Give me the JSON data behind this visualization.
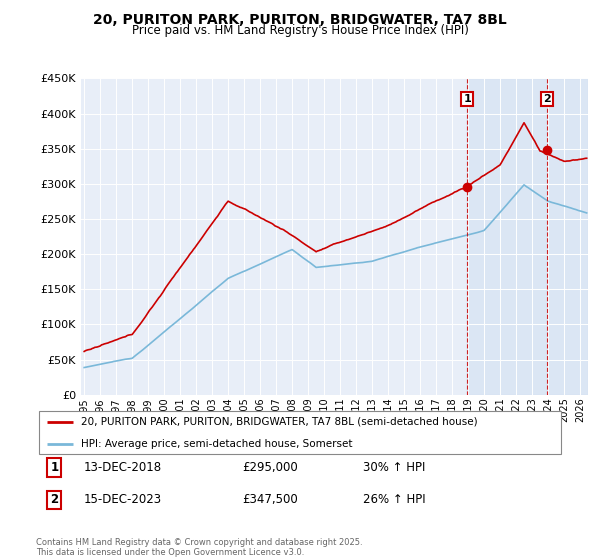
{
  "title": "20, PURITON PARK, PURITON, BRIDGWATER, TA7 8BL",
  "subtitle": "Price paid vs. HM Land Registry's House Price Index (HPI)",
  "ylim": [
    0,
    450000
  ],
  "xlim_start": 1994.8,
  "xlim_end": 2026.5,
  "property_color": "#cc0000",
  "hpi_color": "#7ab8d9",
  "marker1_x": 2018.958,
  "marker1_y": 295000,
  "marker2_x": 2023.958,
  "marker2_y": 347500,
  "shade_color": "#ddeeff",
  "legend_property": "20, PURITON PARK, PURITON, BRIDGWATER, TA7 8BL (semi-detached house)",
  "legend_hpi": "HPI: Average price, semi-detached house, Somerset",
  "annotation1_date": "13-DEC-2018",
  "annotation1_price": "£295,000",
  "annotation1_hpi": "30% ↑ HPI",
  "annotation2_date": "15-DEC-2023",
  "annotation2_price": "£347,500",
  "annotation2_hpi": "26% ↑ HPI",
  "footer": "Contains HM Land Registry data © Crown copyright and database right 2025.\nThis data is licensed under the Open Government Licence v3.0.",
  "background_color": "#e8eef8"
}
